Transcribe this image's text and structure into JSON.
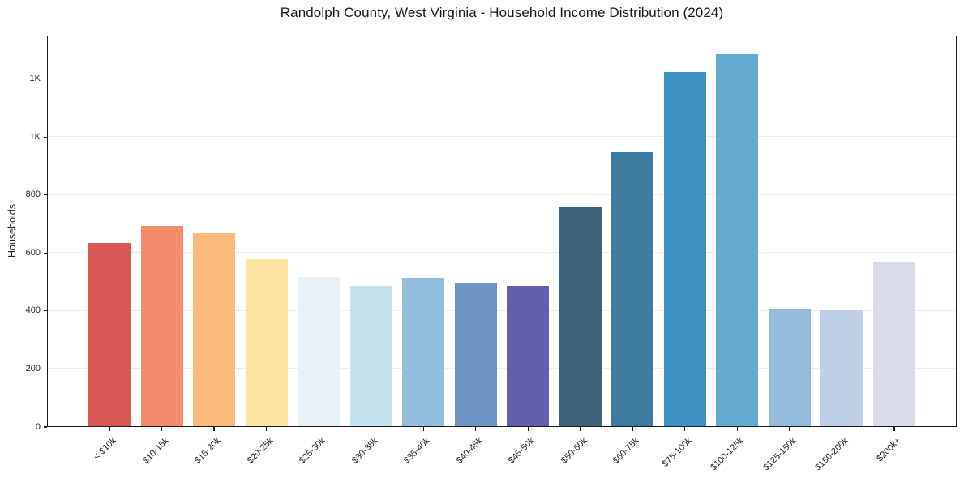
{
  "chart_data": {
    "type": "bar",
    "title": "Randolph County, West Virginia - Household Income Distribution (2024)",
    "xlabel": "",
    "ylabel": "Households",
    "categories": [
      "< $10k",
      "$10-15k",
      "$15-20k",
      "$20-25k",
      "$25-30k",
      "$30-35k",
      "$35-40k",
      "$40-45k",
      "$45-50k",
      "$50-60k",
      "$60-75k",
      "$75-100k",
      "$100-125k",
      "$125-150k",
      "$150-200k",
      "$200k+"
    ],
    "values": [
      635,
      694,
      668,
      580,
      518,
      486,
      514,
      498,
      485,
      758,
      948,
      1225,
      1287,
      406,
      403,
      568
    ],
    "bar_colors": [
      "#d6534e",
      "#f48768",
      "#fab878",
      "#fce3a0",
      "#e6f1f6",
      "#c3e1ee",
      "#8ebddc",
      "#6b90c4",
      "#5c5aa7",
      "#375f75",
      "#37789b",
      "#388ebf",
      "#5fa6cc",
      "#93badc",
      "#bccde5",
      "#d8dae8"
    ],
    "ylim": [
      0,
      1350
    ],
    "yticks": [
      {
        "value": 0,
        "label": "0"
      },
      {
        "value": 200,
        "label": "200"
      },
      {
        "value": 400,
        "label": "400"
      },
      {
        "value": 600,
        "label": "600"
      },
      {
        "value": 800,
        "label": "800"
      },
      {
        "value": 1000,
        "label": "1K"
      },
      {
        "value": 1200,
        "label": "1K"
      }
    ],
    "grid": "horizontal",
    "legend": "none",
    "background": "#ffffff",
    "grid_color": "#ebedef",
    "spine_color": "#1c1c1c",
    "text_color": "#262626"
  }
}
